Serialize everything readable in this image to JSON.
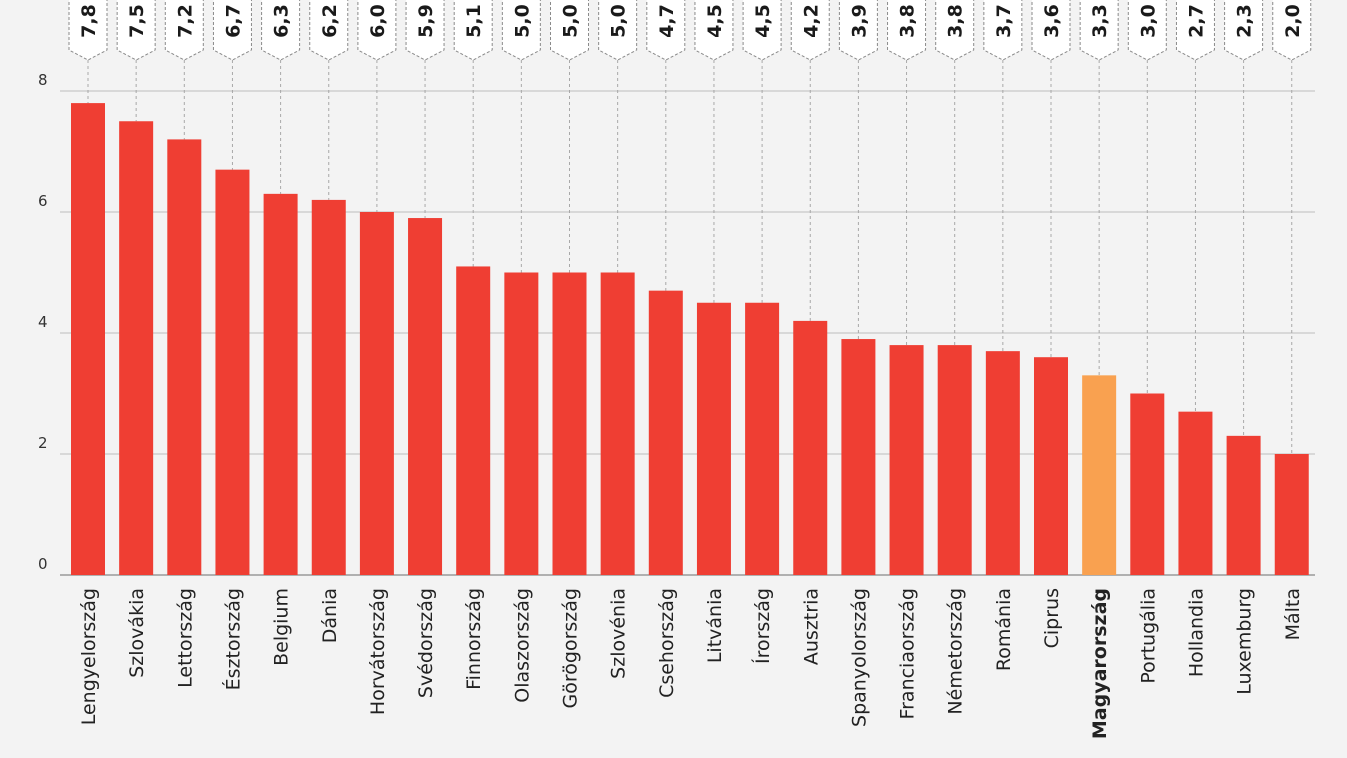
{
  "chart_data": {
    "type": "bar",
    "categories": [
      "Lengyelország",
      "Szlovákia",
      "Lettország",
      "Észtország",
      "Belgium",
      "Dánia",
      "Horvátország",
      "Svédország",
      "Finnország",
      "Olaszország",
      "Görögország",
      "Szlovénia",
      "Csehország",
      "Litvánia",
      "Írország",
      "Ausztria",
      "Spanyolország",
      "Franciaország",
      "Németország",
      "Románia",
      "Ciprus",
      "Magyarország",
      "Portugália",
      "Hollandia",
      "Luxemburg",
      "Málta"
    ],
    "values": [
      7.8,
      7.5,
      7.2,
      6.7,
      6.3,
      6.2,
      6.0,
      5.9,
      5.1,
      5.0,
      5.0,
      5.0,
      4.7,
      4.5,
      4.5,
      4.2,
      3.9,
      3.8,
      3.8,
      3.7,
      3.6,
      3.3,
      3.0,
      2.7,
      2.3,
      2.0
    ],
    "value_labels": [
      "7,8",
      "7,5",
      "7,2",
      "6,7",
      "6,3",
      "6,2",
      "6,0",
      "5,9",
      "5,1",
      "5,0",
      "5,0",
      "5,0",
      "4,7",
      "4,5",
      "4,5",
      "4,2",
      "3,9",
      "3,8",
      "3,8",
      "3,7",
      "3,6",
      "3,3",
      "3,0",
      "2,7",
      "2,3",
      "2,0"
    ],
    "highlight": "Magyarország",
    "y_ticks": [
      "0",
      "2",
      "4",
      "6",
      "8"
    ],
    "ylim": [
      0,
      8
    ],
    "grid": true,
    "colors": {
      "bar": "#ef3e33",
      "highlight": "#f9a150",
      "grid": "#bdbdbd",
      "label_box": "#8a8a8a"
    }
  }
}
